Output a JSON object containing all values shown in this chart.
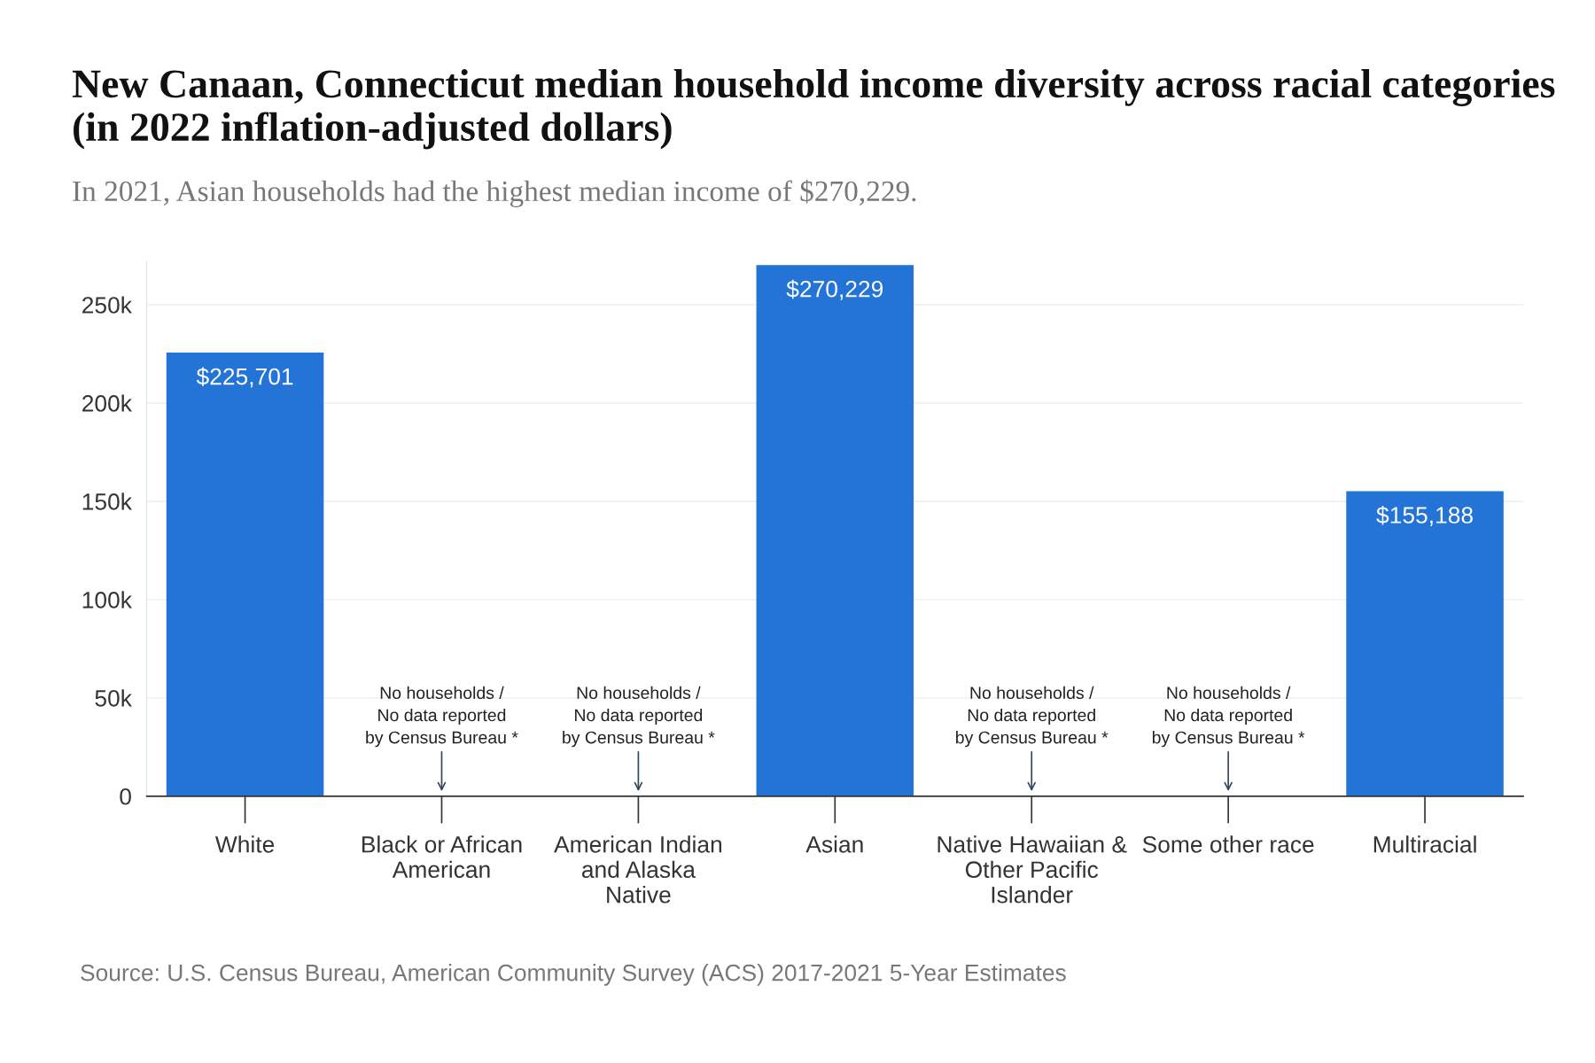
{
  "chart_data": {
    "type": "bar",
    "title": "New Canaan, Connecticut median household income diversity across racial categories (in 2022 inflation-adjusted dollars)",
    "subtitle": "In 2021, Asian households had the highest median income of $270,229.",
    "categories": [
      "White",
      "Black or African\nAmerican",
      "American Indian\nand Alaska\nNative",
      "Asian",
      "Native Hawaiian &\nOther Pacific\nIslander",
      "Some other race",
      "Multiracial"
    ],
    "values": [
      225701,
      null,
      null,
      270229,
      null,
      null,
      155188
    ],
    "value_labels": [
      "$225,701",
      null,
      null,
      "$270,229",
      null,
      null,
      "$155,188"
    ],
    "color": "#2473d6",
    "ylim": [
      0,
      272000
    ],
    "yticks": [
      {
        "value": 0,
        "label": "0"
      },
      {
        "value": 50000,
        "label": "50k"
      },
      {
        "value": 100000,
        "label": "100k"
      },
      {
        "value": 150000,
        "label": "150k"
      },
      {
        "value": 200000,
        "label": "200k"
      },
      {
        "value": 250000,
        "label": "250k"
      }
    ],
    "grid": "y",
    "legend": false,
    "annotations": [
      "No households /\nNo data reported\nby Census Bureau *",
      "No households /\nNo data reported\nby Census Bureau *",
      "No households /\nNo data reported\nby Census Bureau *",
      "No households /\nNo data reported\nby Census Bureau *",
      "Source: U.S. Census Bureau, American Community Survey (ACS) 2017-2021 5-Year Estimates"
    ]
  }
}
